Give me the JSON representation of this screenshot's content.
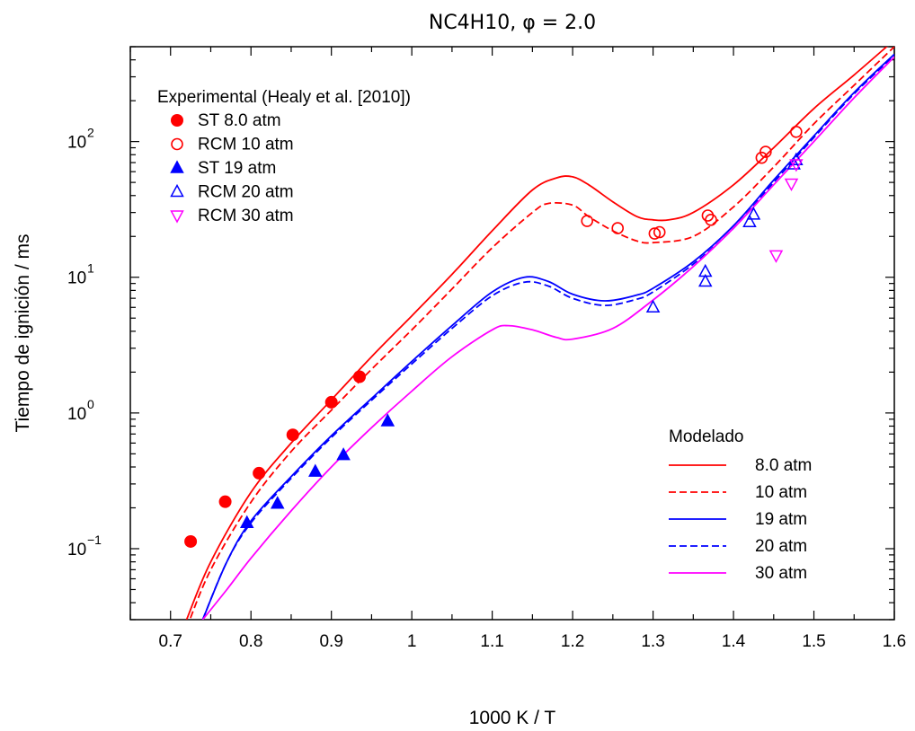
{
  "chart_data": {
    "type": "scatter",
    "title": "NC4H10,  φ = 2.0",
    "xlabel": "1000 K / T",
    "ylabel": "Tiempo de ignición / ms",
    "xlim": [
      0.65,
      1.6
    ],
    "ylim": [
      0.03,
      500
    ],
    "yscale": "log",
    "x_ticks": [
      0.7,
      0.8,
      0.9,
      1,
      1.1,
      1.2,
      1.3,
      1.4,
      1.5,
      1.6
    ],
    "x_tick_labels": [
      "0.7",
      "0.8",
      "0.9",
      "1",
      "1.1",
      "1.2",
      "1.3",
      "1.4",
      "1.5",
      "1.6"
    ],
    "y_ticks": [
      {
        "value": 0.1,
        "base": "10",
        "exp": "−1"
      },
      {
        "value": 1,
        "base": "10",
        "exp": "0"
      },
      {
        "value": 10,
        "base": "10",
        "exp": "1"
      },
      {
        "value": 100,
        "base": "10",
        "exp": "2"
      }
    ],
    "legend_experimental": {
      "title": "Experimental (Healy et al. [2010])",
      "position": "top-left"
    },
    "legend_model": {
      "title": "Modelado",
      "position": "bottom-right"
    },
    "experimental": [
      {
        "name": "ST 8.0 atm",
        "color": "#ff0000",
        "marker": "circle-filled",
        "points": [
          [
            0.725,
            0.113
          ],
          [
            0.768,
            0.222
          ],
          [
            0.81,
            0.36
          ],
          [
            0.852,
            0.69
          ],
          [
            0.9,
            1.2
          ],
          [
            0.935,
            1.85
          ]
        ]
      },
      {
        "name": "RCM 10 atm",
        "color": "#ff0000",
        "marker": "circle-open",
        "points": [
          [
            1.218,
            26
          ],
          [
            1.256,
            23
          ],
          [
            1.302,
            21
          ],
          [
            1.308,
            21.5
          ],
          [
            1.368,
            28.5
          ],
          [
            1.372,
            26.5
          ],
          [
            1.435,
            76
          ],
          [
            1.44,
            84
          ],
          [
            1.478,
            118
          ]
        ]
      },
      {
        "name": "ST 19 atm",
        "color": "#0000ff",
        "marker": "triangle-filled",
        "points": [
          [
            0.795,
            0.155
          ],
          [
            0.833,
            0.215
          ],
          [
            0.88,
            0.37
          ],
          [
            0.915,
            0.49
          ],
          [
            0.97,
            0.87
          ]
        ]
      },
      {
        "name": "RCM 20 atm",
        "color": "#0000ff",
        "marker": "triangle-open",
        "points": [
          [
            1.3,
            6
          ],
          [
            1.365,
            9.3
          ],
          [
            1.365,
            11
          ],
          [
            1.42,
            25.5
          ],
          [
            1.425,
            29
          ],
          [
            1.475,
            68
          ],
          [
            1.478,
            73
          ]
        ]
      },
      {
        "name": "RCM 30 atm",
        "color": "#ff00ff",
        "marker": "triangle-down-open",
        "points": [
          [
            1.453,
            14.5
          ],
          [
            1.472,
            49
          ],
          [
            1.478,
            68
          ]
        ]
      }
    ],
    "model": [
      {
        "name": "8.0 atm",
        "color": "#ff0000",
        "dash": "solid",
        "x": [
          0.72,
          0.75,
          0.8,
          0.85,
          0.9,
          0.95,
          1.0,
          1.05,
          1.1,
          1.15,
          1.18,
          1.2,
          1.22,
          1.25,
          1.28,
          1.3,
          1.32,
          1.35,
          1.4,
          1.45,
          1.5,
          1.55,
          1.6
        ],
        "y": [
          0.03,
          0.08,
          0.26,
          0.6,
          1.25,
          2.6,
          5.2,
          10.5,
          22,
          44,
          54,
          55,
          48,
          36,
          28,
          26.5,
          26.5,
          30,
          48,
          90,
          175,
          310,
          560
        ]
      },
      {
        "name": "10 atm",
        "color": "#ff0000",
        "dash": "dashed",
        "x": [
          0.72,
          0.75,
          0.8,
          0.85,
          0.9,
          0.95,
          1.0,
          1.05,
          1.1,
          1.15,
          1.17,
          1.2,
          1.22,
          1.25,
          1.28,
          1.3,
          1.35,
          1.4,
          1.45,
          1.5,
          1.55,
          1.6
        ],
        "y": [
          0.026,
          0.07,
          0.22,
          0.52,
          1.05,
          2.1,
          4.1,
          8.2,
          16.5,
          30,
          35,
          34,
          28,
          22,
          18.5,
          18,
          20,
          33,
          65,
          135,
          260,
          500
        ]
      },
      {
        "name": "19 atm",
        "color": "#0000ff",
        "dash": "solid",
        "x": [
          0.74,
          0.77,
          0.8,
          0.85,
          0.9,
          0.95,
          1.0,
          1.05,
          1.1,
          1.14,
          1.17,
          1.2,
          1.24,
          1.28,
          1.3,
          1.35,
          1.4,
          1.45,
          1.5,
          1.55,
          1.6
        ],
        "y": [
          0.03,
          0.08,
          0.16,
          0.34,
          0.68,
          1.28,
          2.4,
          4.4,
          7.8,
          10,
          9.3,
          7.5,
          6.7,
          7.4,
          8.3,
          13,
          24,
          52,
          110,
          230,
          440
        ]
      },
      {
        "name": "20 atm",
        "color": "#0000ff",
        "dash": "dashed",
        "x": [
          0.74,
          0.77,
          0.8,
          0.85,
          0.9,
          0.95,
          1.0,
          1.05,
          1.1,
          1.14,
          1.17,
          1.2,
          1.24,
          1.28,
          1.3,
          1.35,
          1.4,
          1.45,
          1.5,
          1.55,
          1.6
        ],
        "y": [
          0.03,
          0.08,
          0.155,
          0.33,
          0.66,
          1.24,
          2.3,
          4.2,
          7.3,
          9.2,
          8.6,
          7.0,
          6.2,
          6.9,
          7.8,
          12.5,
          23,
          50,
          107,
          225,
          430
        ]
      },
      {
        "name": "30 atm",
        "color": "#ff00ff",
        "dash": "solid",
        "x": [
          0.74,
          0.77,
          0.8,
          0.85,
          0.9,
          0.95,
          1.0,
          1.05,
          1.1,
          1.12,
          1.15,
          1.18,
          1.2,
          1.25,
          1.3,
          1.35,
          1.4,
          1.45,
          1.5,
          1.55,
          1.6
        ],
        "y": [
          0.03,
          0.05,
          0.085,
          0.19,
          0.4,
          0.78,
          1.45,
          2.6,
          4.1,
          4.4,
          4.1,
          3.6,
          3.5,
          4.2,
          6.8,
          12,
          23,
          48,
          100,
          210,
          420
        ]
      }
    ]
  }
}
